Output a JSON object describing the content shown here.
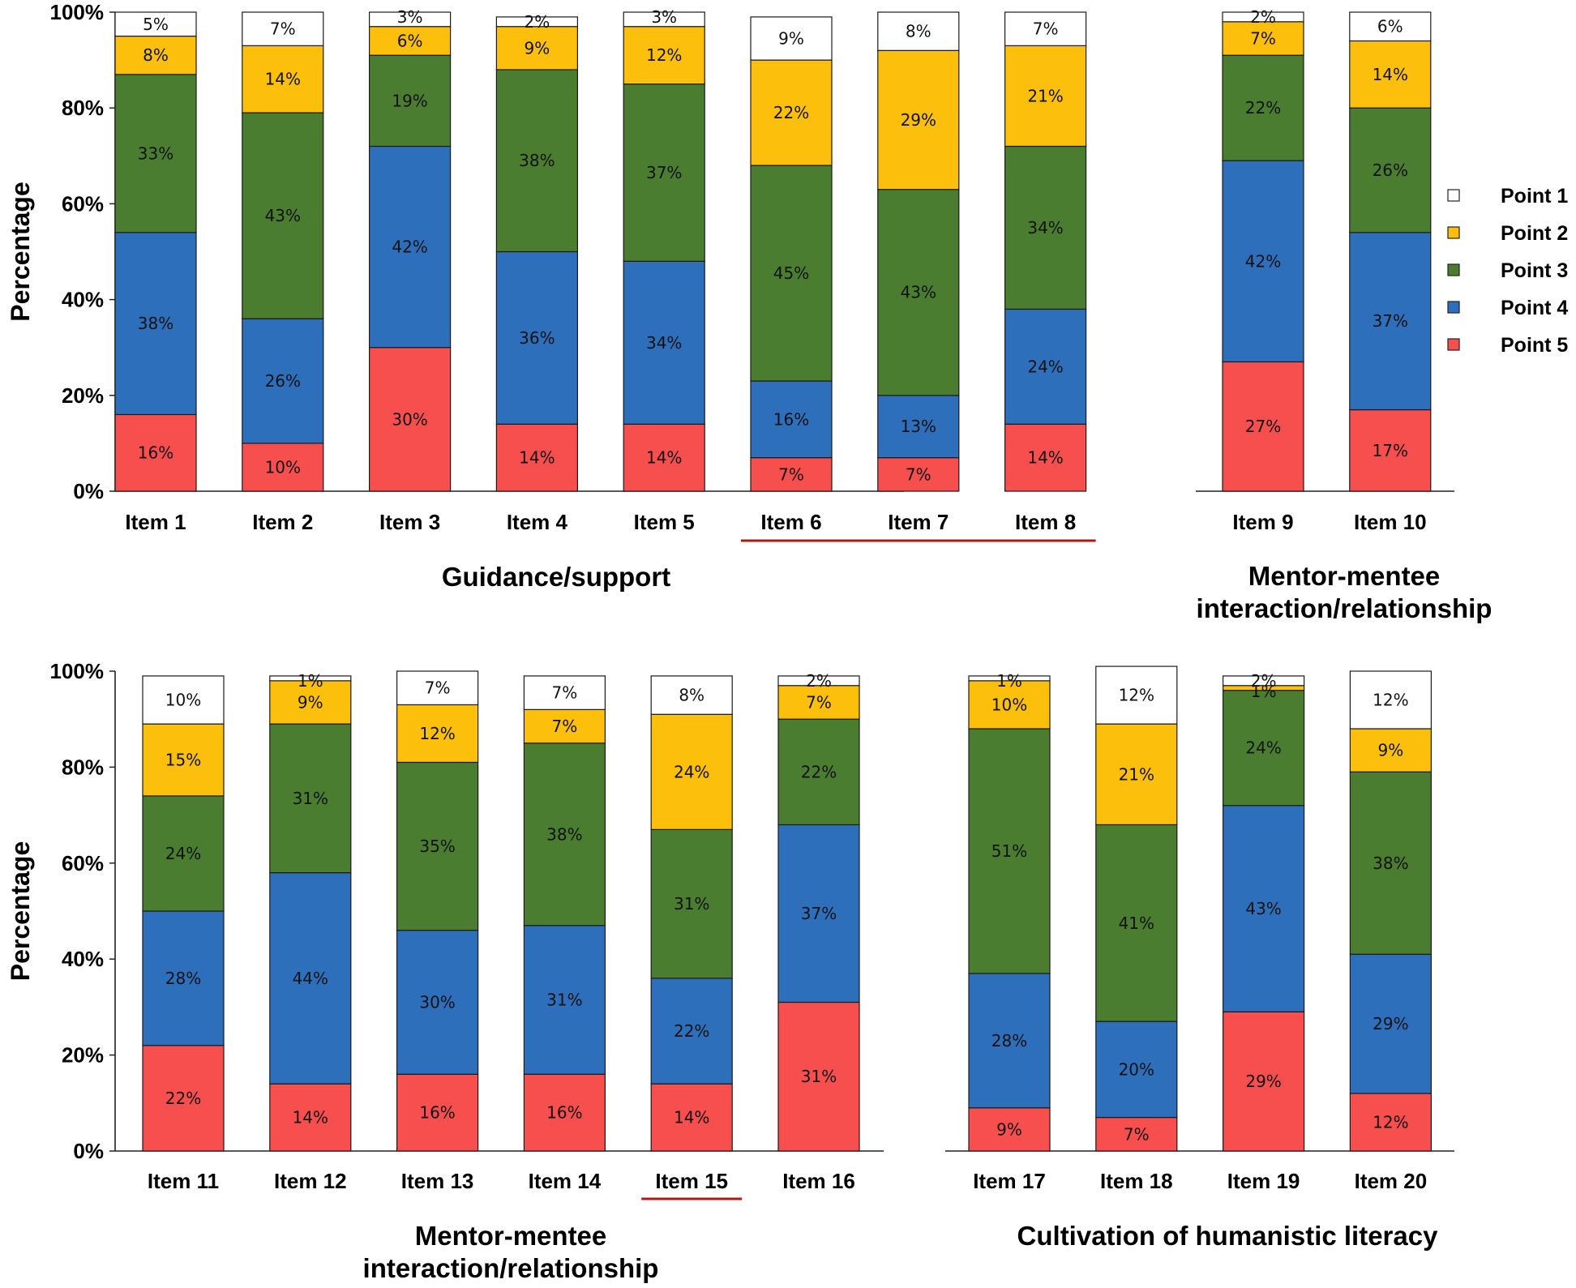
{
  "colors": {
    "Point 1": "#ffffff",
    "Point 2": "#fcbf0c",
    "Point 3": "#4a7d2f",
    "Point 4": "#2e6fbc",
    "Point 5": "#f74e4e",
    "highlight": "#b01818"
  },
  "chart_data": [
    {
      "type": "bar",
      "stacked": true,
      "title": "Guidance/support",
      "ylabel": "Percentage",
      "ylim": [
        0,
        100
      ],
      "yticks": [
        "0%",
        "20%",
        "40%",
        "60%",
        "80%",
        "100%"
      ],
      "categories": [
        "Item 1",
        "Item 2",
        "Item 3",
        "Item 4",
        "Item 5",
        "Item 6",
        "Item 7",
        "Item 8"
      ],
      "highlighted": [
        "Item 6",
        "Item 7",
        "Item 8"
      ],
      "series": [
        {
          "name": "Point 5",
          "values": [
            16,
            10,
            30,
            14,
            14,
            7,
            7,
            14
          ]
        },
        {
          "name": "Point 4",
          "values": [
            38,
            26,
            42,
            36,
            34,
            16,
            13,
            24
          ]
        },
        {
          "name": "Point 3",
          "values": [
            33,
            43,
            19,
            38,
            37,
            45,
            43,
            34
          ]
        },
        {
          "name": "Point 2",
          "values": [
            8,
            14,
            6,
            9,
            12,
            22,
            29,
            21
          ]
        },
        {
          "name": "Point 1",
          "values": [
            5,
            7,
            3,
            2,
            3,
            9,
            8,
            7
          ]
        }
      ]
    },
    {
      "type": "bar",
      "stacked": true,
      "title": "Mentor-mentee interaction/relationship",
      "title_lines": [
        "Mentor-mentee",
        "interaction/relationship"
      ],
      "ylim": [
        0,
        100
      ],
      "categories": [
        "Item 9",
        "Item 10"
      ],
      "highlighted": [],
      "series": [
        {
          "name": "Point 5",
          "values": [
            27,
            17
          ]
        },
        {
          "name": "Point 4",
          "values": [
            42,
            37
          ]
        },
        {
          "name": "Point 3",
          "values": [
            22,
            26
          ]
        },
        {
          "name": "Point 2",
          "values": [
            7,
            14
          ]
        },
        {
          "name": "Point 1",
          "values": [
            2,
            6
          ]
        }
      ]
    },
    {
      "type": "bar",
      "stacked": true,
      "title": "Mentor-mentee interaction/relationship",
      "title_lines": [
        "Mentor-mentee",
        "interaction/relationship"
      ],
      "ylabel": "Percentage",
      "ylim": [
        0,
        100
      ],
      "yticks": [
        "0%",
        "20%",
        "40%",
        "60%",
        "80%",
        "100%"
      ],
      "categories": [
        "Item 11",
        "Item 12",
        "Item 13",
        "Item 14",
        "Item 15",
        "Item 16"
      ],
      "highlighted": [
        "Item 15"
      ],
      "series": [
        {
          "name": "Point 5",
          "values": [
            22,
            14,
            16,
            16,
            14,
            31
          ]
        },
        {
          "name": "Point 4",
          "values": [
            28,
            44,
            30,
            31,
            22,
            37
          ]
        },
        {
          "name": "Point 3",
          "values": [
            24,
            31,
            35,
            38,
            31,
            22
          ]
        },
        {
          "name": "Point 2",
          "values": [
            15,
            9,
            12,
            7,
            24,
            7
          ]
        },
        {
          "name": "Point 1",
          "values": [
            10,
            1,
            7,
            7,
            8,
            2
          ]
        }
      ]
    },
    {
      "type": "bar",
      "stacked": true,
      "title": "Cultivation of humanistic literacy",
      "ylim": [
        0,
        100
      ],
      "categories": [
        "Item 17",
        "Item 18",
        "Item 19",
        "Item 20"
      ],
      "highlighted": [],
      "series": [
        {
          "name": "Point 5",
          "values": [
            9,
            7,
            29,
            12
          ]
        },
        {
          "name": "Point 4",
          "values": [
            28,
            20,
            43,
            29
          ]
        },
        {
          "name": "Point 3",
          "values": [
            51,
            41,
            24,
            38
          ]
        },
        {
          "name": "Point 2",
          "values": [
            10,
            21,
            1,
            9
          ]
        },
        {
          "name": "Point 1",
          "values": [
            1,
            12,
            2,
            12
          ]
        }
      ]
    }
  ],
  "legend": {
    "entries": [
      "Point 1",
      "Point 2",
      "Point 3",
      "Point 4",
      "Point 5"
    ],
    "position": "right"
  }
}
